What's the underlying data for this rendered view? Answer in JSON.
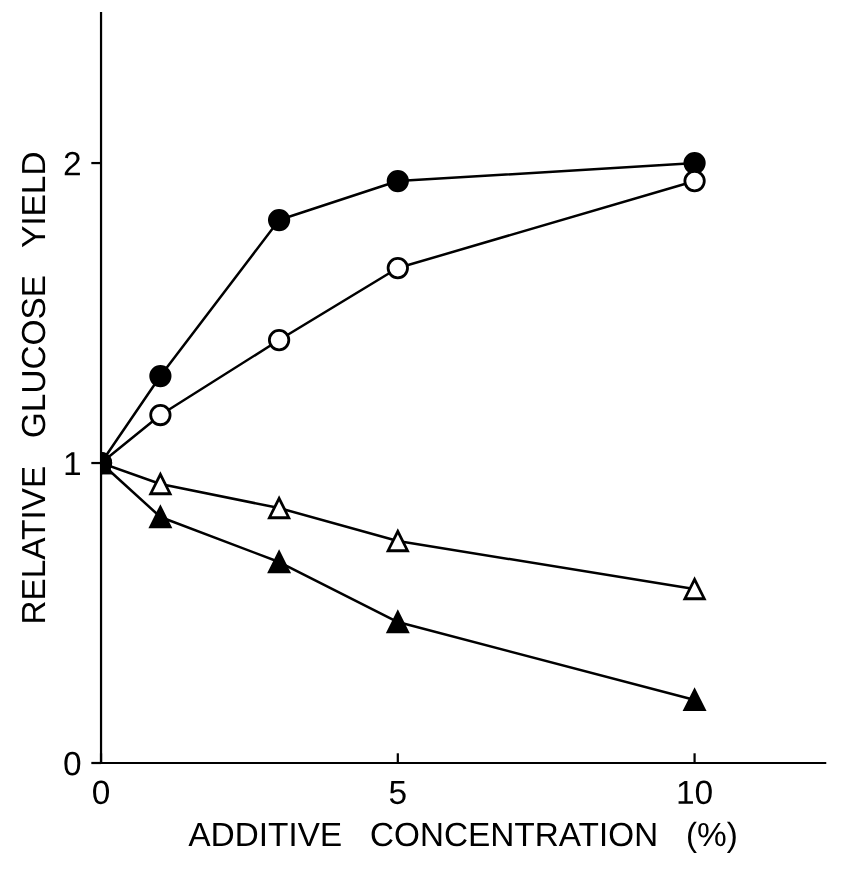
{
  "chart_data": {
    "type": "line",
    "xlabel": "ADDITIVE   CONCENTRATION   (%)",
    "ylabel": "RELATIVE   GLUCOSE   YIELD",
    "x": [
      0,
      1,
      3,
      5,
      10
    ],
    "series": [
      {
        "color": "#000000",
        "marker": "circle",
        "colors": [
          "#000000",
          "#000000",
          "#000000",
          "#000000",
          "#000000"
        ],
        "values": [
          1,
          1.29,
          1.81,
          1.94,
          2.0
        ]
      },
      {
        "color": "#000000",
        "marker": "circle",
        "colors": [
          "#000000",
          "#ffffff",
          "#ffffff",
          "#ffffff",
          "#ffffff"
        ],
        "values": [
          1,
          1.16,
          1.41,
          1.65,
          1.94
        ]
      },
      {
        "color": "#000000",
        "marker": "triangle",
        "colors": [
          "#000000",
          "#ffffff",
          "#ffffff",
          "#ffffff",
          "#ffffff"
        ],
        "values": [
          1,
          0.93,
          0.85,
          0.74,
          0.58
        ]
      },
      {
        "color": "#000000",
        "marker": "triangle",
        "colors": [
          "#000000",
          "#000000",
          "#000000",
          "#000000",
          "#000000"
        ],
        "values": [
          1,
          0.82,
          0.67,
          0.47,
          0.21
        ]
      }
    ],
    "xlim": [
      0,
      12.2
    ],
    "ylim": [
      0,
      2.5
    ],
    "xticks": [
      0,
      5,
      10
    ],
    "yticks": [
      0,
      1,
      2
    ],
    "grid": false
  }
}
